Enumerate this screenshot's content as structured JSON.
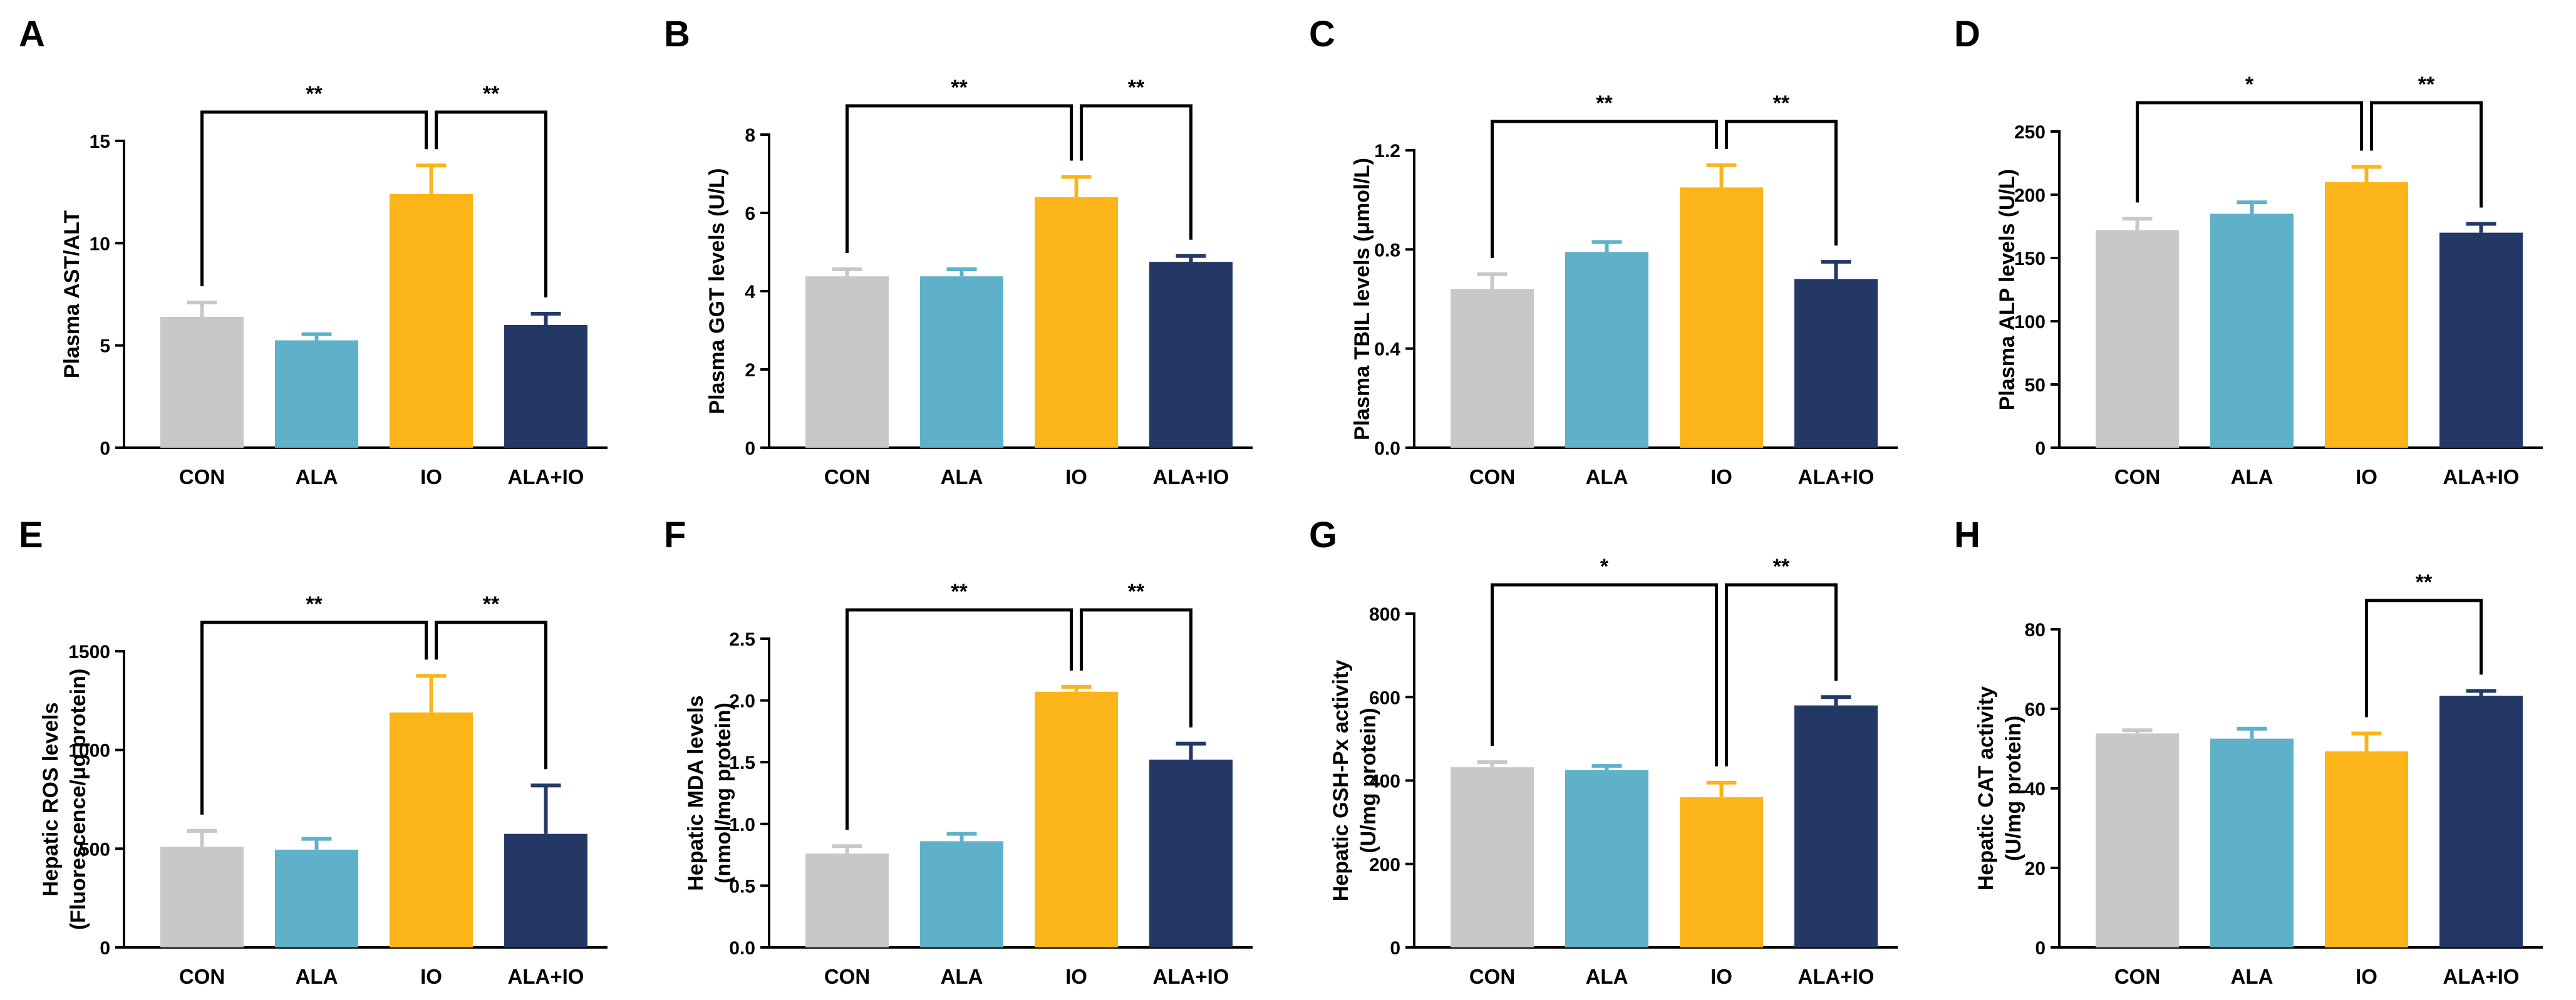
{
  "figure": {
    "colors": {
      "CON": "#c8c8c8",
      "ALA": "#5fb1c9",
      "IO": "#fbb519",
      "ALA+IO": "#233864",
      "axis": "#000000"
    }
  },
  "chart_data": [
    {
      "type": "bar",
      "panel": "A",
      "ylabel_lines": [
        "Plasma AST/ALT"
      ],
      "categories": [
        "CON",
        "ALA",
        "IO",
        "ALA+IO"
      ],
      "values": [
        6.4,
        5.25,
        12.4,
        6.0
      ],
      "errors": [
        0.7,
        0.3,
        1.4,
        0.55
      ],
      "ylim": [
        0,
        15
      ],
      "yticks": [
        0,
        5,
        10,
        15
      ],
      "significance": [
        {
          "from": "CON",
          "to": "IO",
          "label": "**"
        },
        {
          "from": "IO",
          "to": "ALA+IO",
          "label": "**"
        }
      ]
    },
    {
      "type": "bar",
      "panel": "B",
      "ylabel_lines": [
        "Plasma GGT levels (U/L)"
      ],
      "categories": [
        "CON",
        "ALA",
        "IO",
        "ALA+IO"
      ],
      "values": [
        4.38,
        4.38,
        6.4,
        4.75
      ],
      "errors": [
        0.18,
        0.18,
        0.52,
        0.15
      ],
      "ylim": [
        0,
        8
      ],
      "yticks": [
        0,
        2,
        4,
        6,
        8
      ],
      "significance": [
        {
          "from": "CON",
          "to": "IO",
          "label": "**"
        },
        {
          "from": "IO",
          "to": "ALA+IO",
          "label": "**"
        }
      ]
    },
    {
      "type": "bar",
      "panel": "C",
      "ylabel_lines": [
        "Plasma TBIL levels (μmol/L)"
      ],
      "categories": [
        "CON",
        "ALA",
        "IO",
        "ALA+IO"
      ],
      "values": [
        0.64,
        0.79,
        1.05,
        0.68
      ],
      "errors": [
        0.06,
        0.04,
        0.09,
        0.07
      ],
      "ylim": [
        0,
        1.2
      ],
      "yticks": [
        "0.0",
        "0.4",
        "0.8",
        "1.2"
      ],
      "significance": [
        {
          "from": "CON",
          "to": "IO",
          "label": "**"
        },
        {
          "from": "IO",
          "to": "ALA+IO",
          "label": "**"
        }
      ]
    },
    {
      "type": "bar",
      "panel": "D",
      "ylabel_lines": [
        "Plasma ALP levels (U/L)"
      ],
      "categories": [
        "CON",
        "ALA",
        "IO",
        "ALA+IO"
      ],
      "values": [
        172,
        185,
        210,
        170
      ],
      "errors": [
        9,
        9,
        12,
        7
      ],
      "ylim": [
        0,
        250
      ],
      "yticks": [
        0,
        50,
        100,
        150,
        200,
        250
      ],
      "significance": [
        {
          "from": "CON",
          "to": "IO",
          "label": "*"
        },
        {
          "from": "IO",
          "to": "ALA+IO",
          "label": "**"
        }
      ]
    },
    {
      "type": "bar",
      "panel": "E",
      "ylabel_lines": [
        "Hepatic ROS levels",
        "(Fluorescence/μg protein)"
      ],
      "categories": [
        "CON",
        "ALA",
        "IO",
        "ALA+IO"
      ],
      "values": [
        510,
        495,
        1190,
        575
      ],
      "errors": [
        80,
        55,
        185,
        245
      ],
      "ylim": [
        0,
        1500
      ],
      "yticks": [
        0,
        500,
        1000,
        1500
      ],
      "significance": [
        {
          "from": "CON",
          "to": "IO",
          "label": "**"
        },
        {
          "from": "IO",
          "to": "ALA+IO",
          "label": "**"
        }
      ]
    },
    {
      "type": "bar",
      "panel": "F",
      "ylabel_lines": [
        "Hepatic MDA levels",
        "(nmol/mg protein)"
      ],
      "categories": [
        "CON",
        "ALA",
        "IO",
        "ALA+IO"
      ],
      "values": [
        0.76,
        0.86,
        2.07,
        1.52
      ],
      "errors": [
        0.06,
        0.06,
        0.04,
        0.13
      ],
      "ylim": [
        0,
        2.5
      ],
      "yticks": [
        "0.0",
        "0.5",
        "1.0",
        "1.5",
        "2.0",
        "2.5"
      ],
      "significance": [
        {
          "from": "CON",
          "to": "IO",
          "label": "**"
        },
        {
          "from": "IO",
          "to": "ALA+IO",
          "label": "**"
        }
      ]
    },
    {
      "type": "bar",
      "panel": "G",
      "ylabel_lines": [
        "Hepatic GSH-Px activity",
        "(U/mg protein)"
      ],
      "categories": [
        "CON",
        "ALA",
        "IO",
        "ALA+IO"
      ],
      "values": [
        432,
        425,
        360,
        580
      ],
      "errors": [
        12,
        10,
        35,
        20
      ],
      "ylim": [
        0,
        800
      ],
      "yticks": [
        0,
        200,
        400,
        600,
        800
      ],
      "significance": [
        {
          "from": "CON",
          "to": "IO",
          "label": "*"
        },
        {
          "from": "IO",
          "to": "ALA+IO",
          "label": "**"
        }
      ]
    },
    {
      "type": "bar",
      "panel": "H",
      "ylabel_lines": [
        "Hepatic CAT activity",
        "(U/mg protein)"
      ],
      "categories": [
        "CON",
        "ALA",
        "IO",
        "ALA+IO"
      ],
      "values": [
        53.8,
        52.5,
        49.3,
        63.3
      ],
      "errors": [
        0.8,
        2.5,
        4.5,
        1.2
      ],
      "ylim": [
        0,
        80
      ],
      "yticks": [
        0,
        20,
        40,
        60,
        80
      ],
      "significance": [
        {
          "from": "IO",
          "to": "ALA+IO",
          "label": "**"
        }
      ]
    }
  ]
}
